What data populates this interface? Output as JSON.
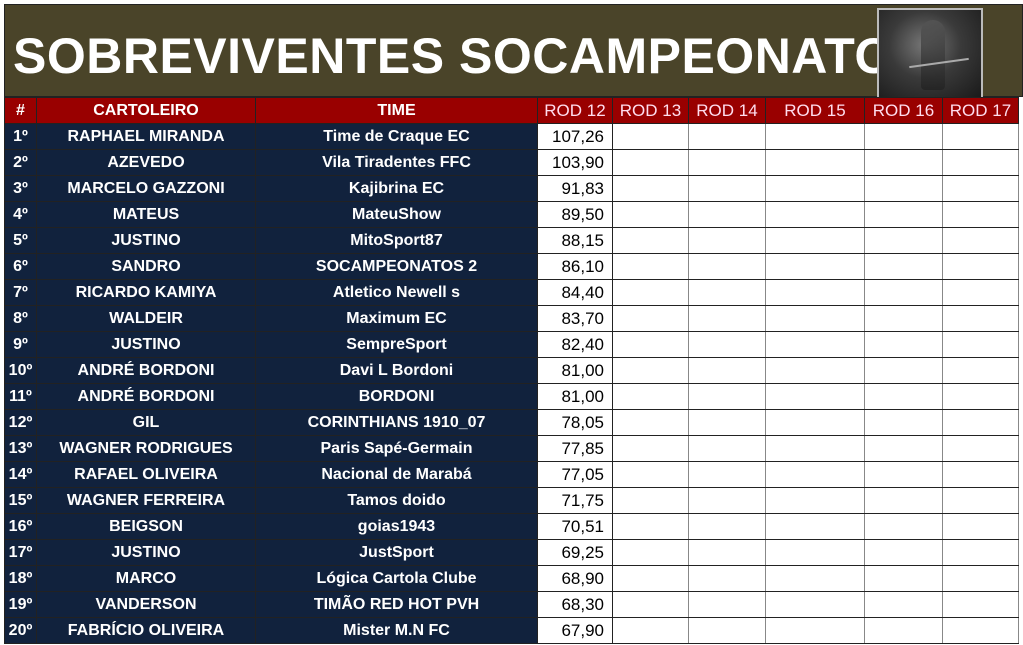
{
  "title": "SOBREVIVENTES SOCAMPEONATOS",
  "logo": "grim-reaper-image",
  "colors": {
    "title_bg": "#4a4429",
    "header_bg": "#990000",
    "row_bg": "#11223d"
  },
  "headers": [
    "#",
    "CARTOLEIRO",
    "TIME",
    "ROD 12",
    "ROD 13",
    "ROD 14",
    "ROD 15",
    "ROD 16",
    "ROD 17"
  ],
  "rows": [
    {
      "pos": "1º",
      "cartoleiro": "RAPHAEL MIRANDA",
      "time": "Time de Craque EC",
      "rod12": "107,26"
    },
    {
      "pos": "2º",
      "cartoleiro": "AZEVEDO",
      "time": "Vila Tiradentes FFC",
      "rod12": "103,90"
    },
    {
      "pos": "3º",
      "cartoleiro": "MARCELO GAZZONI",
      "time": "Kajibrina EC",
      "rod12": "91,83"
    },
    {
      "pos": "4º",
      "cartoleiro": "MATEUS",
      "time": "MateuShow",
      "rod12": "89,50"
    },
    {
      "pos": "5º",
      "cartoleiro": "JUSTINO",
      "time": "MitoSport87",
      "rod12": "88,15"
    },
    {
      "pos": "6º",
      "cartoleiro": "SANDRO",
      "time": "SOCAMPEONATOS 2",
      "rod12": "86,10"
    },
    {
      "pos": "7º",
      "cartoleiro": "RICARDO KAMIYA",
      "time": "Atletico Newell s",
      "rod12": "84,40"
    },
    {
      "pos": "8º",
      "cartoleiro": "WALDEIR",
      "time": "Maximum EC",
      "rod12": "83,70"
    },
    {
      "pos": "9º",
      "cartoleiro": "JUSTINO",
      "time": "SempreSport",
      "rod12": "82,40"
    },
    {
      "pos": "10º",
      "cartoleiro": "ANDRÉ BORDONI",
      "time": "Davi L Bordoni",
      "rod12": "81,00"
    },
    {
      "pos": "11º",
      "cartoleiro": "ANDRÉ BORDONI",
      "time": "BORDONI",
      "rod12": "81,00"
    },
    {
      "pos": "12º",
      "cartoleiro": "GIL",
      "time": "CORINTHIANS 1910_07",
      "rod12": "78,05"
    },
    {
      "pos": "13º",
      "cartoleiro": "WAGNER RODRIGUES",
      "time": "Paris Sapé-Germain",
      "rod12": "77,85"
    },
    {
      "pos": "14º",
      "cartoleiro": "RAFAEL OLIVEIRA",
      "time": "Nacional de Marabá",
      "rod12": "77,05"
    },
    {
      "pos": "15º",
      "cartoleiro": "WAGNER FERREIRA",
      "time": "Tamos doido",
      "rod12": "71,75"
    },
    {
      "pos": "16º",
      "cartoleiro": "BEIGSON",
      "time": "goias1943",
      "rod12": "70,51"
    },
    {
      "pos": "17º",
      "cartoleiro": "JUSTINO",
      "time": "JustSport",
      "rod12": "69,25"
    },
    {
      "pos": "18º",
      "cartoleiro": "MARCO",
      "time": "Lógica Cartola Clube",
      "rod12": "68,90"
    },
    {
      "pos": "19º",
      "cartoleiro": "VANDERSON",
      "time": "TIMÃO RED HOT PVH",
      "rod12": "68,30"
    },
    {
      "pos": "20º",
      "cartoleiro": "FABRÍCIO OLIVEIRA",
      "time": "Mister M.N FC",
      "rod12": "67,90"
    }
  ]
}
